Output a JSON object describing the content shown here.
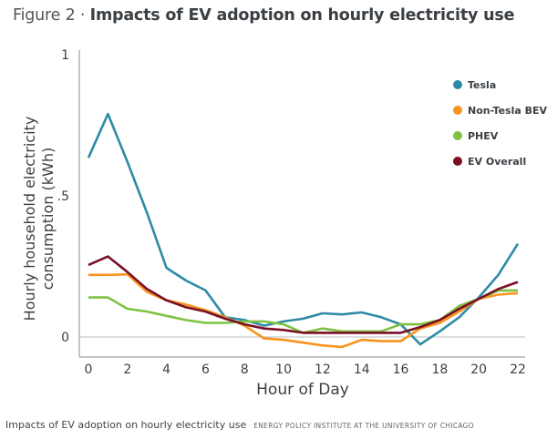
{
  "title": {
    "prefix": "Figure 2 ·",
    "main": "Impacts of EV adoption on hourly electricity use"
  },
  "footer": {
    "caption": "Impacts of EV adoption on hourly electricity use",
    "source": "ENERGY POLICY INSTITUTE AT THE UNIVERSITY OF CHICAGO"
  },
  "chart_data": {
    "type": "line",
    "xlabel": "Hour of Day",
    "ylabel": "Hourly household electricity consumption (kWh)",
    "xlim": [
      0,
      22
    ],
    "ylim": [
      -0.07,
      1
    ],
    "x_ticks": [
      "0",
      "2",
      "4",
      "6",
      "8",
      "10",
      "12",
      "14",
      "16",
      "18",
      "20",
      "22"
    ],
    "y_ticks": [
      {
        "value": 0,
        "label": "0"
      },
      {
        "value": 0.5,
        "label": ".5"
      },
      {
        "value": 1,
        "label": "1"
      }
    ],
    "legend_position": "top-right",
    "x": [
      0,
      1,
      2,
      3,
      4,
      5,
      6,
      7,
      8,
      9,
      10,
      11,
      12,
      13,
      14,
      15,
      16,
      17,
      18,
      19,
      20,
      21,
      22
    ],
    "series": [
      {
        "name": "Tesla",
        "color": "#2e8ba6",
        "values": [
          0.635,
          0.79,
          0.62,
          0.44,
          0.245,
          0.2,
          0.165,
          0.07,
          0.06,
          0.04,
          0.055,
          0.065,
          0.084,
          0.08,
          0.087,
          0.07,
          0.045,
          -0.026,
          0.02,
          0.07,
          0.14,
          0.22,
          0.33
        ]
      },
      {
        "name": "Non-Tesla BEV",
        "color": "#f7941d",
        "values": [
          0.22,
          0.22,
          0.222,
          0.16,
          0.13,
          0.115,
          0.095,
          0.07,
          0.04,
          -0.005,
          -0.01,
          -0.02,
          -0.03,
          -0.035,
          -0.01,
          -0.015,
          -0.015,
          0.03,
          0.05,
          0.09,
          0.135,
          0.15,
          0.155
        ]
      },
      {
        "name": "PHEV",
        "color": "#7dc242",
        "values": [
          0.14,
          0.14,
          0.1,
          0.09,
          0.075,
          0.06,
          0.05,
          0.05,
          0.055,
          0.055,
          0.045,
          0.015,
          0.03,
          0.02,
          0.02,
          0.02,
          0.045,
          0.045,
          0.06,
          0.11,
          0.135,
          0.165,
          0.165
        ]
      },
      {
        "name": "EV Overall",
        "color": "#7a0f24",
        "values": [
          0.255,
          0.285,
          0.23,
          0.17,
          0.13,
          0.105,
          0.09,
          0.065,
          0.045,
          0.03,
          0.025,
          0.015,
          0.015,
          0.015,
          0.015,
          0.015,
          0.015,
          0.035,
          0.06,
          0.1,
          0.135,
          0.17,
          0.195
        ]
      }
    ]
  }
}
